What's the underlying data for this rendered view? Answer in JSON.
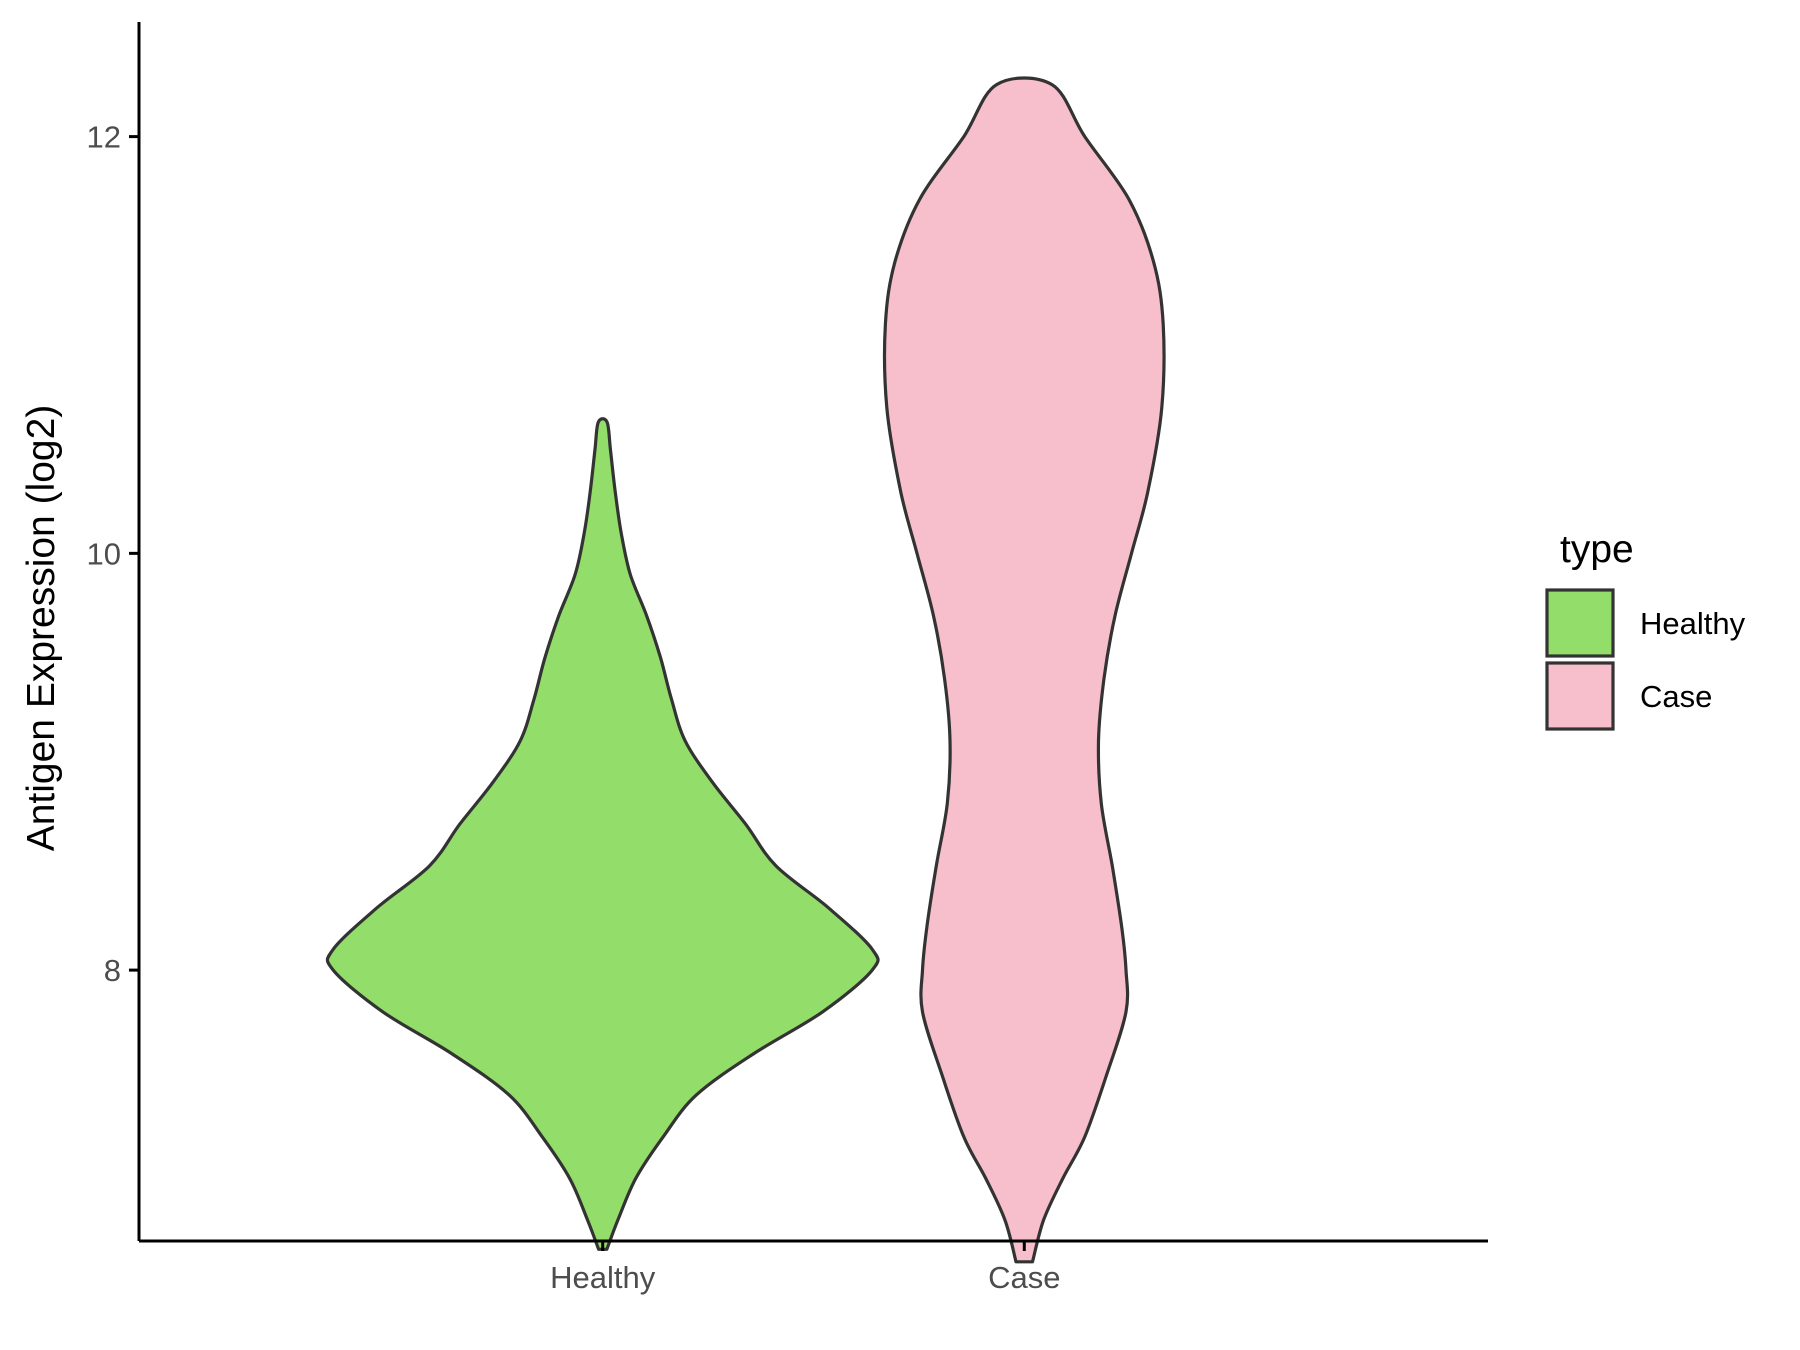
{
  "chart_data": {
    "type": "violin",
    "categories": [
      "Healthy",
      "Case"
    ],
    "ylabel": "Antigen Expression (log2)",
    "xlabel": "",
    "ylim": [
      6.7,
      12.55
    ],
    "yticks": [
      8,
      10,
      12
    ],
    "legend": {
      "title": "type",
      "position": "right",
      "entries": [
        {
          "label": "Healthy",
          "color": "#93dd6a"
        },
        {
          "label": "Case",
          "color": "#f7bfcb"
        }
      ]
    },
    "series": [
      {
        "name": "Healthy",
        "color": "#93dd6a",
        "min": 6.66,
        "max": 10.63,
        "density_profile": [
          [
            6.66,
            0.015
          ],
          [
            6.8,
            0.055
          ],
          [
            7.0,
            0.12
          ],
          [
            7.2,
            0.22
          ],
          [
            7.4,
            0.34
          ],
          [
            7.6,
            0.55
          ],
          [
            7.8,
            0.8
          ],
          [
            8.0,
            0.98
          ],
          [
            8.1,
            0.98
          ],
          [
            8.3,
            0.82
          ],
          [
            8.5,
            0.63
          ],
          [
            8.7,
            0.52
          ],
          [
            8.9,
            0.4
          ],
          [
            9.1,
            0.3
          ],
          [
            9.3,
            0.25
          ],
          [
            9.5,
            0.21
          ],
          [
            9.7,
            0.16
          ],
          [
            9.9,
            0.1
          ],
          [
            10.1,
            0.067
          ],
          [
            10.3,
            0.045
          ],
          [
            10.5,
            0.028
          ],
          [
            10.63,
            0.016
          ]
        ]
      },
      {
        "name": "Case",
        "color": "#f7bfcb",
        "min": 6.6,
        "max": 12.25,
        "density_profile": [
          [
            6.6,
            0.03
          ],
          [
            6.8,
            0.07
          ],
          [
            7.0,
            0.14
          ],
          [
            7.2,
            0.22
          ],
          [
            7.5,
            0.3
          ],
          [
            7.8,
            0.37
          ],
          [
            8.0,
            0.37
          ],
          [
            8.2,
            0.355
          ],
          [
            8.5,
            0.32
          ],
          [
            8.8,
            0.28
          ],
          [
            9.1,
            0.27
          ],
          [
            9.4,
            0.29
          ],
          [
            9.7,
            0.33
          ],
          [
            10.0,
            0.39
          ],
          [
            10.3,
            0.45
          ],
          [
            10.7,
            0.5
          ],
          [
            11.1,
            0.505
          ],
          [
            11.4,
            0.47
          ],
          [
            11.7,
            0.38
          ],
          [
            12.0,
            0.22
          ],
          [
            12.25,
            0.1
          ]
        ]
      }
    ]
  }
}
